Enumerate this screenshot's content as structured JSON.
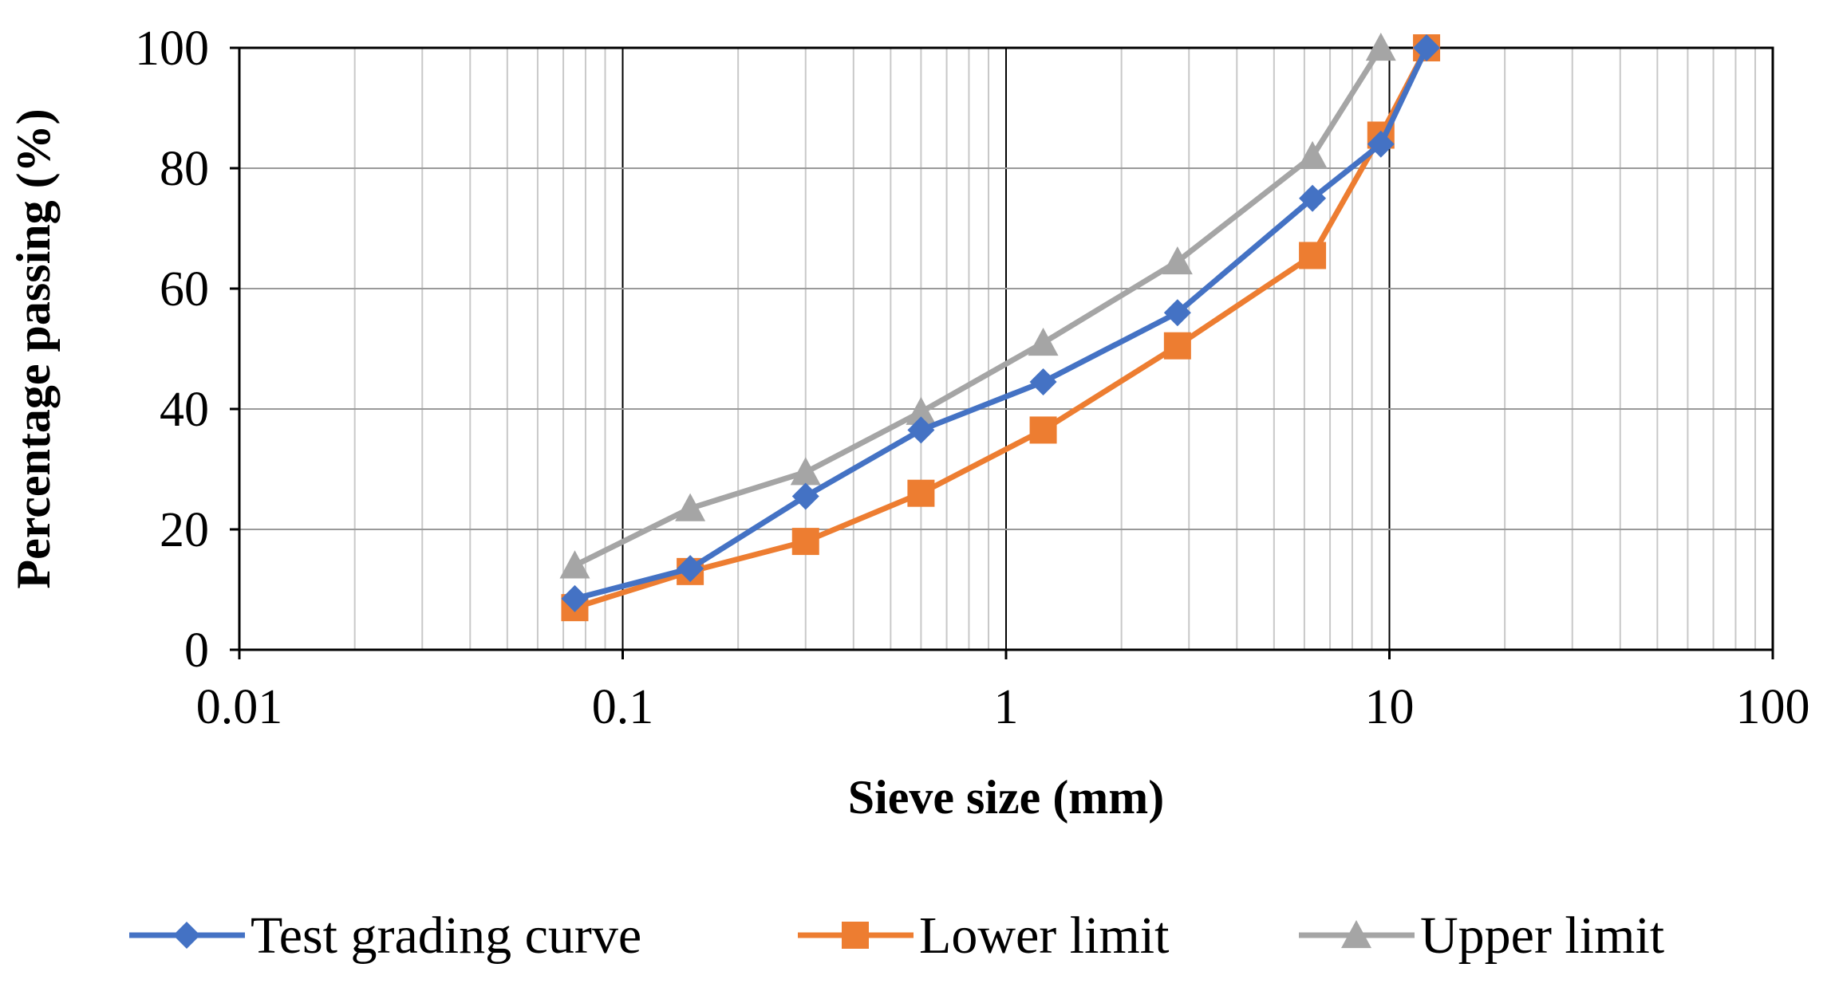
{
  "chart_data": {
    "type": "line",
    "x_scale": "log",
    "xlabel": "Sieve size (mm)",
    "ylabel": "Percentage passing (%)",
    "xlim": [
      0.01,
      100
    ],
    "ylim": [
      0,
      100
    ],
    "x_ticks": [
      0.01,
      0.1,
      1,
      10,
      100
    ],
    "x_tick_labels": [
      "0.01",
      "0.1",
      "1",
      "10",
      "100"
    ],
    "y_ticks": [
      0,
      20,
      40,
      60,
      80,
      100
    ],
    "y_tick_labels": [
      "0",
      "20",
      "40",
      "60",
      "80",
      "100"
    ],
    "grid": true,
    "legend_position": "bottom",
    "series": [
      {
        "name": "Test grading curve",
        "color": "#4472C4",
        "marker": "diamond",
        "x": [
          0.075,
          0.15,
          0.3,
          0.6,
          1.25,
          2.8,
          6.3,
          9.5,
          12.5
        ],
        "y": [
          8.5,
          13.5,
          25.5,
          36.5,
          44.5,
          56,
          75,
          84,
          100
        ]
      },
      {
        "name": "Lower limit",
        "color": "#ED7D31",
        "marker": "square",
        "x": [
          0.075,
          0.15,
          0.3,
          0.6,
          1.25,
          2.8,
          6.3,
          9.5,
          12.5
        ],
        "y": [
          7,
          13,
          18,
          26,
          36.5,
          50.5,
          65.5,
          85.5,
          100
        ]
      },
      {
        "name": "Upper limit",
        "color": "#A5A5A5",
        "marker": "triangle",
        "x": [
          0.075,
          0.15,
          0.3,
          0.6,
          1.25,
          2.8,
          6.3,
          9.5
        ],
        "y": [
          14,
          23.5,
          29.5,
          39.5,
          51,
          64.5,
          82,
          100
        ]
      }
    ]
  }
}
